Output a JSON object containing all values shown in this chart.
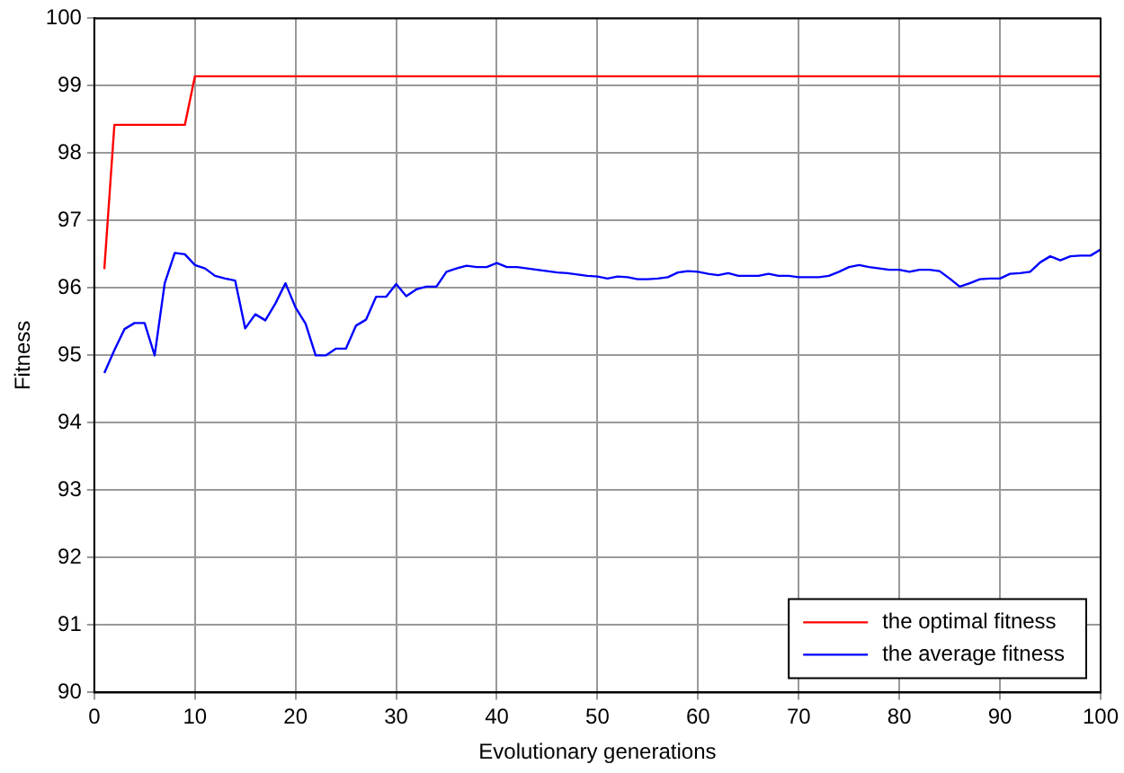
{
  "chart_data": {
    "type": "line",
    "xlabel": "Evolutionary generations",
    "ylabel": "Fitness",
    "xlim": [
      0,
      100
    ],
    "xticks": [
      0,
      10,
      20,
      30,
      40,
      50,
      60,
      70,
      80,
      90,
      100
    ],
    "ylim": [
      90,
      100
    ],
    "yticks": [
      90,
      91,
      92,
      93,
      94,
      95,
      96,
      97,
      98,
      99,
      100
    ],
    "grid": true,
    "legend": "bottom right",
    "marker": "none",
    "line_style": "solid",
    "x": [
      1,
      2,
      3,
      4,
      5,
      6,
      7,
      8,
      9,
      10,
      11,
      12,
      13,
      14,
      15,
      16,
      17,
      18,
      19,
      20,
      21,
      22,
      23,
      24,
      25,
      26,
      27,
      28,
      29,
      30,
      31,
      32,
      33,
      34,
      35,
      36,
      37,
      38,
      39,
      40,
      41,
      42,
      43,
      44,
      45,
      46,
      47,
      48,
      49,
      50,
      51,
      52,
      53,
      54,
      55,
      56,
      57,
      58,
      59,
      60,
      61,
      62,
      63,
      64,
      65,
      66,
      67,
      68,
      69,
      70,
      71,
      72,
      73,
      74,
      75,
      76,
      77,
      78,
      79,
      80,
      81,
      82,
      83,
      84,
      85,
      86,
      87,
      88,
      89,
      90,
      91,
      92,
      93,
      94,
      95,
      96,
      97,
      98,
      99,
      100
    ],
    "series": [
      {
        "name": "the optimal fitness",
        "color": "#ff0000",
        "values": [
          96.28,
          98.42,
          98.42,
          98.42,
          98.42,
          98.42,
          98.42,
          98.42,
          98.42,
          99.14,
          99.14,
          99.14,
          99.14,
          99.14,
          99.14,
          99.14,
          99.14,
          99.14,
          99.14,
          99.14,
          99.14,
          99.14,
          99.14,
          99.14,
          99.14,
          99.14,
          99.14,
          99.14,
          99.14,
          99.14,
          99.14,
          99.14,
          99.14,
          99.14,
          99.14,
          99.14,
          99.14,
          99.14,
          99.14,
          99.14,
          99.14,
          99.14,
          99.14,
          99.14,
          99.14,
          99.14,
          99.14,
          99.14,
          99.14,
          99.14,
          99.14,
          99.14,
          99.14,
          99.14,
          99.14,
          99.14,
          99.14,
          99.14,
          99.14,
          99.14,
          99.14,
          99.14,
          99.14,
          99.14,
          99.14,
          99.14,
          99.14,
          99.14,
          99.14,
          99.14,
          99.14,
          99.14,
          99.14,
          99.14,
          99.14,
          99.14,
          99.14,
          99.14,
          99.14,
          99.14,
          99.14,
          99.14,
          99.14,
          99.14,
          99.14,
          99.14,
          99.14,
          99.14,
          99.14,
          99.14,
          99.14,
          99.14,
          99.14,
          99.14,
          99.14,
          99.14,
          99.14,
          99.14,
          99.14,
          99.14
        ]
      },
      {
        "name": "the average fitness",
        "color": "#0000ff",
        "values": [
          94.74,
          95.08,
          95.39,
          95.48,
          95.48,
          95.0,
          96.07,
          96.52,
          96.5,
          96.34,
          96.29,
          96.18,
          96.14,
          96.11,
          95.4,
          95.61,
          95.52,
          95.77,
          96.07,
          95.71,
          95.47,
          95.0,
          95.0,
          95.1,
          95.1,
          95.44,
          95.53,
          95.87,
          95.87,
          96.06,
          95.88,
          95.98,
          96.02,
          96.02,
          96.24,
          96.29,
          96.33,
          96.31,
          96.31,
          96.37,
          96.31,
          96.31,
          96.29,
          96.27,
          96.25,
          96.23,
          96.22,
          96.2,
          96.18,
          96.17,
          96.14,
          96.17,
          96.16,
          96.13,
          96.13,
          96.14,
          96.16,
          96.23,
          96.25,
          96.24,
          96.21,
          96.19,
          96.22,
          96.18,
          96.18,
          96.18,
          96.21,
          96.18,
          96.18,
          96.16,
          96.16,
          96.16,
          96.18,
          96.24,
          96.31,
          96.34,
          96.31,
          96.29,
          96.27,
          96.27,
          96.24,
          96.27,
          96.27,
          96.25,
          96.14,
          96.02,
          96.07,
          96.13,
          96.14,
          96.14,
          96.21,
          96.22,
          96.24,
          96.38,
          96.47,
          96.41,
          96.47,
          96.48,
          96.48,
          96.57
        ]
      }
    ]
  }
}
